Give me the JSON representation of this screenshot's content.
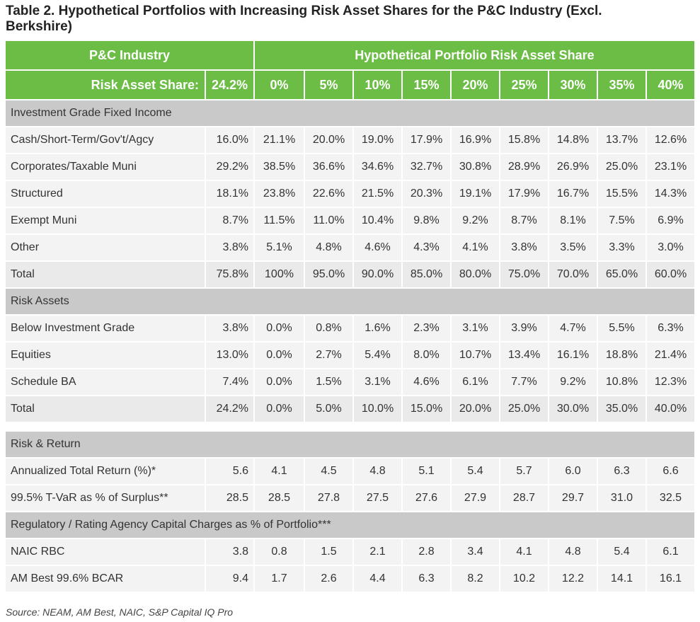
{
  "title": "Table 2. Hypothetical Portfolios with Increasing Risk Asset Shares for the P&C Industry (Excl. Berkshire)",
  "header": {
    "industry_label": "P&C Industry",
    "portfolio_label": "Hypothetical Portfolio Risk Asset Share",
    "ras_label": "Risk Asset Share:",
    "industry_value": "24.2%",
    "shares": [
      "0%",
      "5%",
      "10%",
      "15%",
      "20%",
      "25%",
      "30%",
      "35%",
      "40%"
    ]
  },
  "sections": {
    "ig": {
      "title": "Investment Grade Fixed Income",
      "rows": [
        {
          "label": "Cash/Short-Term/Gov't/Agcy",
          "industry": "16.0%",
          "values": [
            "21.1%",
            "20.0%",
            "19.0%",
            "17.9%",
            "16.9%",
            "15.8%",
            "14.8%",
            "13.7%",
            "12.6%"
          ]
        },
        {
          "label": "Corporates/Taxable Muni",
          "industry": "29.2%",
          "values": [
            "38.5%",
            "36.6%",
            "34.6%",
            "32.7%",
            "30.8%",
            "28.9%",
            "26.9%",
            "25.0%",
            "23.1%"
          ]
        },
        {
          "label": "Structured",
          "industry": "18.1%",
          "values": [
            "23.8%",
            "22.6%",
            "21.5%",
            "20.3%",
            "19.1%",
            "17.9%",
            "16.7%",
            "15.5%",
            "14.3%"
          ]
        },
        {
          "label": "Exempt Muni",
          "industry": "8.7%",
          "values": [
            "11.5%",
            "11.0%",
            "10.4%",
            "9.8%",
            "9.2%",
            "8.7%",
            "8.1%",
            "7.5%",
            "6.9%"
          ]
        },
        {
          "label": "Other",
          "industry": "3.8%",
          "values": [
            "5.1%",
            "4.8%",
            "4.6%",
            "4.3%",
            "4.1%",
            "3.8%",
            "3.5%",
            "3.3%",
            "3.0%"
          ]
        },
        {
          "label": "Total",
          "industry": "75.8%",
          "values": [
            "100%",
            "95.0%",
            "90.0%",
            "85.0%",
            "80.0%",
            "75.0%",
            "70.0%",
            "65.0%",
            "60.0%"
          ]
        }
      ]
    },
    "ra": {
      "title": "Risk Assets",
      "rows": [
        {
          "label": "Below Investment Grade",
          "industry": "3.8%",
          "values": [
            "0.0%",
            "0.8%",
            "1.6%",
            "2.3%",
            "3.1%",
            "3.9%",
            "4.7%",
            "5.5%",
            "6.3%"
          ]
        },
        {
          "label": "Equities",
          "industry": "13.0%",
          "values": [
            "0.0%",
            "2.7%",
            "5.4%",
            "8.0%",
            "10.7%",
            "13.4%",
            "16.1%",
            "18.8%",
            "21.4%"
          ]
        },
        {
          "label": "Schedule BA",
          "industry": "7.4%",
          "values": [
            "0.0%",
            "1.5%",
            "3.1%",
            "4.6%",
            "6.1%",
            "7.7%",
            "9.2%",
            "10.8%",
            "12.3%"
          ]
        },
        {
          "label": "Total",
          "industry": "24.2%",
          "values": [
            "0.0%",
            "5.0%",
            "10.0%",
            "15.0%",
            "20.0%",
            "25.0%",
            "30.0%",
            "35.0%",
            "40.0%"
          ]
        }
      ]
    },
    "rr": {
      "title": "Risk & Return",
      "rows": [
        {
          "label": "Annualized Total Return (%)*",
          "industry": "5.6",
          "values": [
            "4.1",
            "4.5",
            "4.8",
            "5.1",
            "5.4",
            "5.7",
            "6.0",
            "6.3",
            "6.6"
          ]
        },
        {
          "label": "99.5% T-VaR as % of Surplus**",
          "industry": "28.5",
          "values": [
            "28.5",
            "27.8",
            "27.5",
            "27.6",
            "27.9",
            "28.7",
            "29.7",
            "31.0",
            "32.5"
          ]
        }
      ]
    },
    "reg": {
      "title": "Regulatory / Rating Agency Capital Charges as % of Portfolio***",
      "rows": [
        {
          "label": "NAIC RBC",
          "industry": "3.8",
          "values": [
            "0.8",
            "1.5",
            "2.1",
            "2.8",
            "3.4",
            "4.1",
            "4.8",
            "5.4",
            "6.1"
          ]
        },
        {
          "label": "AM Best 99.6% BCAR",
          "industry": "9.4",
          "values": [
            "1.7",
            "2.6",
            "4.4",
            "6.3",
            "8.2",
            "10.2",
            "12.2",
            "14.1",
            "16.1"
          ]
        }
      ]
    }
  },
  "source": "Source: NEAM, AM Best, NAIC, S&P Capital IQ Pro",
  "colors": {
    "header_green": "#6bbd45",
    "section_gray": "#c9c9c9",
    "row_gray": "#f3f3f3"
  }
}
